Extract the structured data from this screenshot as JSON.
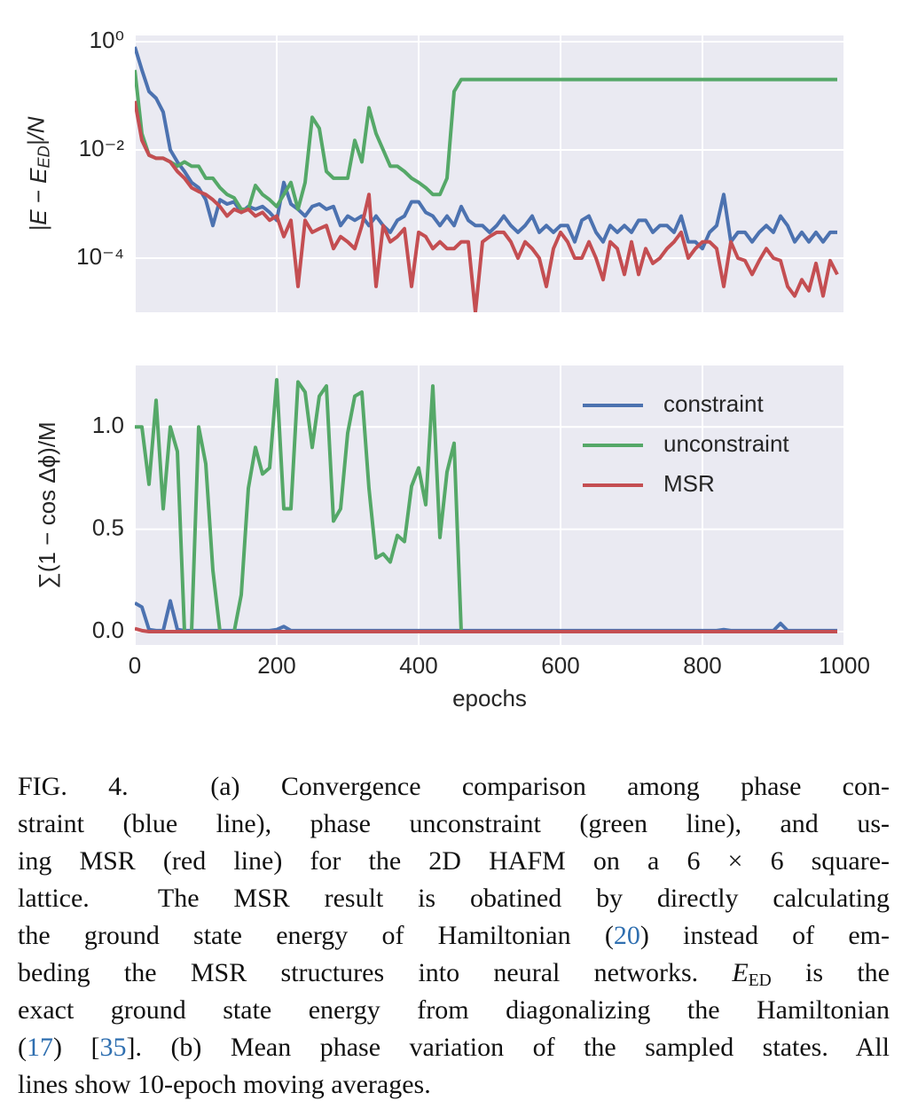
{
  "chart_data": [
    {
      "type": "line",
      "ylabel": "|E − E_{ED}|/N",
      "ylog": true,
      "grid": true,
      "xlim": [
        0,
        1000
      ],
      "ylim": [
        1e-05,
        1.3
      ],
      "yticks": [
        {
          "value": 0.0001,
          "label": "10⁻⁴"
        },
        {
          "value": 0.01,
          "label": "10⁻²"
        },
        {
          "value": 1,
          "label": "10⁰"
        }
      ],
      "x": [
        0,
        10,
        20,
        30,
        40,
        50,
        60,
        70,
        80,
        90,
        100,
        110,
        120,
        130,
        140,
        150,
        160,
        170,
        180,
        190,
        200,
        210,
        220,
        230,
        240,
        250,
        260,
        270,
        280,
        290,
        300,
        310,
        320,
        330,
        340,
        350,
        360,
        370,
        380,
        390,
        400,
        410,
        420,
        430,
        440,
        450,
        460,
        470,
        480,
        490,
        500,
        510,
        520,
        530,
        540,
        550,
        560,
        570,
        580,
        590,
        600,
        610,
        620,
        630,
        640,
        650,
        660,
        670,
        680,
        690,
        700,
        710,
        720,
        730,
        740,
        750,
        760,
        770,
        780,
        790,
        800,
        810,
        820,
        830,
        840,
        850,
        860,
        870,
        880,
        890,
        900,
        910,
        920,
        930,
        940,
        950,
        960,
        970,
        980,
        990
      ],
      "series": [
        {
          "name": "constraint",
          "color": "#4c72b0",
          "values": [
            0.8,
            0.3,
            0.12,
            0.09,
            0.05,
            0.01,
            0.006,
            0.004,
            0.0025,
            0.002,
            0.0012,
            0.0004,
            0.0012,
            0.001,
            0.0011,
            0.0007,
            0.0009,
            0.0008,
            0.0009,
            0.0007,
            0.0005,
            0.0025,
            0.001,
            0.0008,
            0.0006,
            0.0009,
            0.001,
            0.0008,
            0.0009,
            0.0004,
            0.0006,
            0.0005,
            0.0006,
            0.0004,
            0.0006,
            0.0004,
            0.0003,
            0.0005,
            0.0006,
            0.0011,
            0.0011,
            0.0007,
            0.0006,
            0.0004,
            0.0006,
            0.0004,
            0.0009,
            0.0005,
            0.0004,
            0.0004,
            0.0003,
            0.0004,
            0.0006,
            0.0004,
            0.0003,
            0.0004,
            0.0006,
            0.0003,
            0.0004,
            0.0003,
            0.0004,
            0.0004,
            0.0002,
            0.0005,
            0.0006,
            0.0003,
            0.0002,
            0.0004,
            0.0003,
            0.0004,
            0.0003,
            0.0005,
            0.0005,
            0.0003,
            0.0004,
            0.0004,
            0.0003,
            0.0006,
            0.0002,
            0.0002,
            0.00015,
            0.0003,
            0.0004,
            0.0015,
            0.0002,
            0.0003,
            0.0003,
            0.0002,
            0.0003,
            0.0004,
            0.0003,
            0.0006,
            0.0004,
            0.0002,
            0.0003,
            0.0002,
            0.0003,
            0.0002,
            0.0003,
            0.0003
          ]
        },
        {
          "name": "unconstraint",
          "color": "#55a868",
          "values": [
            0.3,
            0.02,
            0.008,
            0.007,
            0.007,
            0.006,
            0.005,
            0.006,
            0.005,
            0.005,
            0.003,
            0.003,
            0.002,
            0.0015,
            0.0013,
            0.0008,
            0.0008,
            0.0022,
            0.0015,
            0.0012,
            0.0009,
            0.0015,
            0.0025,
            0.0008,
            0.0025,
            0.04,
            0.025,
            0.004,
            0.003,
            0.003,
            0.003,
            0.015,
            0.006,
            0.06,
            0.02,
            0.01,
            0.005,
            0.005,
            0.004,
            0.003,
            0.0025,
            0.002,
            0.0015,
            0.0015,
            0.003,
            0.12,
            0.2,
            0.2,
            0.2,
            0.2,
            0.2,
            0.2,
            0.2,
            0.2,
            0.2,
            0.2,
            0.2,
            0.2,
            0.2,
            0.2,
            0.2,
            0.2,
            0.2,
            0.2,
            0.2,
            0.2,
            0.2,
            0.2,
            0.2,
            0.2,
            0.2,
            0.2,
            0.2,
            0.2,
            0.2,
            0.2,
            0.2,
            0.2,
            0.2,
            0.2,
            0.2,
            0.2,
            0.2,
            0.2,
            0.2,
            0.2,
            0.2,
            0.2,
            0.2,
            0.2,
            0.2,
            0.2,
            0.2,
            0.2,
            0.2,
            0.2,
            0.2,
            0.2,
            0.2,
            0.2
          ]
        },
        {
          "name": "MSR",
          "color": "#c44e52",
          "values": [
            0.08,
            0.015,
            0.008,
            0.007,
            0.007,
            0.006,
            0.004,
            0.003,
            0.002,
            0.0017,
            0.0015,
            0.0012,
            0.0009,
            0.0006,
            0.0008,
            0.0007,
            0.0008,
            0.0006,
            0.0007,
            0.0005,
            0.0006,
            0.00025,
            0.0005,
            3e-05,
            0.0005,
            0.0003,
            0.00035,
            0.0004,
            0.00015,
            0.00025,
            0.0002,
            0.00015,
            0.0004,
            0.0015,
            3e-05,
            0.0004,
            0.0002,
            0.00025,
            0.00035,
            3e-05,
            0.0003,
            0.00025,
            0.00015,
            0.0002,
            0.00015,
            0.00015,
            0.0002,
            0.0002,
            1e-05,
            0.0002,
            0.00025,
            0.0003,
            0.0003,
            0.0002,
            0.0001,
            0.0002,
            0.00015,
            0.0001,
            3e-05,
            0.00015,
            0.0003,
            0.0002,
            0.0001,
            0.0001,
            0.0002,
            0.0001,
            4e-05,
            0.0002,
            0.00015,
            5e-05,
            0.0002,
            5e-05,
            0.00015,
            8e-05,
            0.0001,
            0.00015,
            0.0002,
            0.0003,
            0.0001,
            0.00015,
            0.0002,
            0.0002,
            0.00015,
            3e-05,
            0.0002,
            0.0001,
            9e-05,
            5e-05,
            9e-05,
            0.00015,
            0.0001,
            9e-05,
            3e-05,
            2e-05,
            4e-05,
            2.5e-05,
            8e-05,
            2e-05,
            9e-05,
            5e-05
          ]
        }
      ]
    },
    {
      "type": "line",
      "ylabel": "∑(1 − cos Δϕ)/M",
      "xlabel": "epochs",
      "grid": true,
      "legend": "upper right",
      "xlim": [
        0,
        1000
      ],
      "ylim": [
        -0.065,
        1.3
      ],
      "xticks": [
        0,
        200,
        400,
        600,
        800,
        1000
      ],
      "yticks": [
        {
          "value": 0,
          "label": "0.0"
        },
        {
          "value": 0.5,
          "label": "0.5"
        },
        {
          "value": 1,
          "label": "1.0"
        }
      ],
      "x": [
        0,
        10,
        20,
        30,
        40,
        50,
        60,
        70,
        80,
        90,
        100,
        110,
        120,
        130,
        140,
        150,
        160,
        170,
        180,
        190,
        200,
        210,
        220,
        230,
        240,
        250,
        260,
        270,
        280,
        290,
        300,
        310,
        320,
        330,
        340,
        350,
        360,
        370,
        380,
        390,
        400,
        410,
        420,
        430,
        440,
        450,
        460,
        470,
        480,
        490,
        500,
        510,
        520,
        530,
        540,
        550,
        560,
        570,
        580,
        590,
        600,
        610,
        620,
        630,
        640,
        650,
        660,
        670,
        680,
        690,
        700,
        710,
        720,
        730,
        740,
        750,
        760,
        770,
        780,
        790,
        800,
        810,
        820,
        830,
        840,
        850,
        860,
        870,
        880,
        890,
        900,
        910,
        920,
        930,
        940,
        950,
        960,
        970,
        980,
        990
      ],
      "series": [
        {
          "name": "constraint",
          "color": "#4c72b0",
          "values": [
            0.14,
            0.12,
            0.01,
            0.005,
            0.005,
            0.15,
            0.01,
            0.005,
            0.005,
            0.005,
            0.005,
            0.005,
            0.005,
            0.005,
            0.005,
            0.005,
            0.005,
            0.005,
            0.005,
            0.005,
            0.01,
            0.025,
            0.005,
            0.005,
            0.005,
            0.005,
            0.005,
            0.005,
            0.005,
            0.005,
            0.005,
            0.005,
            0.005,
            0.005,
            0.005,
            0.005,
            0.005,
            0.005,
            0.005,
            0.005,
            0.005,
            0.005,
            0.005,
            0.005,
            0.005,
            0.005,
            0.005,
            0.005,
            0.005,
            0.005,
            0.005,
            0.005,
            0.005,
            0.005,
            0.005,
            0.005,
            0.005,
            0.005,
            0.005,
            0.005,
            0.005,
            0.005,
            0.005,
            0.005,
            0.005,
            0.005,
            0.005,
            0.005,
            0.005,
            0.005,
            0.005,
            0.005,
            0.005,
            0.005,
            0.005,
            0.005,
            0.005,
            0.005,
            0.005,
            0.005,
            0.005,
            0.005,
            0.005,
            0.01,
            0.005,
            0.005,
            0.005,
            0.005,
            0.005,
            0.005,
            0.005,
            0.04,
            0.005,
            0.005,
            0.005,
            0.005,
            0.005,
            0.005,
            0.005,
            0.005
          ]
        },
        {
          "name": "unconstraint",
          "color": "#55a868",
          "values": [
            1.0,
            1.0,
            0.72,
            1.13,
            0.6,
            1.0,
            0.88,
            0,
            0,
            1.0,
            0.82,
            0.3,
            0,
            0,
            0,
            0.18,
            0.7,
            0.9,
            0.77,
            0.8,
            1.23,
            0.6,
            0.6,
            1.22,
            1.17,
            0.9,
            1.15,
            1.2,
            0.54,
            0.6,
            0.97,
            1.15,
            1.17,
            0.7,
            0.36,
            0.38,
            0.34,
            0.47,
            0.44,
            0.71,
            0.8,
            0.62,
            1.2,
            0.46,
            0.78,
            0.92,
            0,
            0,
            0,
            0,
            0,
            0,
            0,
            0,
            0,
            0,
            0,
            0,
            0,
            0,
            0,
            0,
            0,
            0,
            0,
            0,
            0,
            0,
            0,
            0,
            0,
            0,
            0,
            0,
            0,
            0,
            0,
            0,
            0,
            0,
            0,
            0,
            0,
            0,
            0,
            0,
            0,
            0,
            0,
            0,
            0,
            0,
            0,
            0,
            0,
            0,
            0,
            0,
            0,
            0
          ]
        },
        {
          "name": "MSR",
          "color": "#c44e52",
          "values": [
            0.015,
            0.005,
            0,
            0,
            0,
            0,
            0,
            0,
            0,
            0,
            0,
            0,
            0,
            0,
            0,
            0,
            0,
            0,
            0,
            0,
            0,
            0,
            0,
            0,
            0,
            0,
            0,
            0,
            0,
            0,
            0,
            0,
            0,
            0,
            0,
            0,
            0,
            0,
            0,
            0,
            0,
            0,
            0,
            0,
            0,
            0,
            0,
            0,
            0,
            0,
            0,
            0,
            0,
            0,
            0,
            0,
            0,
            0,
            0,
            0,
            0,
            0,
            0,
            0,
            0,
            0,
            0,
            0,
            0,
            0,
            0,
            0,
            0,
            0,
            0,
            0,
            0,
            0,
            0,
            0,
            0,
            0,
            0,
            0,
            0,
            0,
            0,
            0,
            0,
            0,
            0,
            0,
            0,
            0,
            0,
            0,
            0,
            0,
            0,
            0
          ]
        }
      ]
    }
  ],
  "caption": {
    "lines": [
      [
        "FIG. 4.  (a) Convergence comparison among phase con-"
      ],
      [
        "straint (blue line), phase unconstraint (green line), and us-"
      ],
      [
        "ing MSR (red line) for the 2D HAFM on a 6 × 6 square-"
      ],
      [
        "lattice.  The MSR result is obatined by directly calculating"
      ],
      [
        "the ground state energy of Hamiltonian (",
        {
          "text": "20",
          "link": true
        },
        ") instead of em-"
      ],
      [
        "beding the MSR structures into neural networks. ",
        {
          "text": "E",
          "sub": "ED"
        },
        " is the"
      ],
      [
        "exact ground state energy from diagonalizing the Hamiltonian"
      ],
      [
        "(",
        {
          "text": "17",
          "link": true
        },
        ") [",
        {
          "text": "35",
          "link": true
        },
        "]. (b) Mean phase variation of the sampled states. All"
      ],
      [
        "lines show 10-epoch moving averages."
      ]
    ]
  }
}
